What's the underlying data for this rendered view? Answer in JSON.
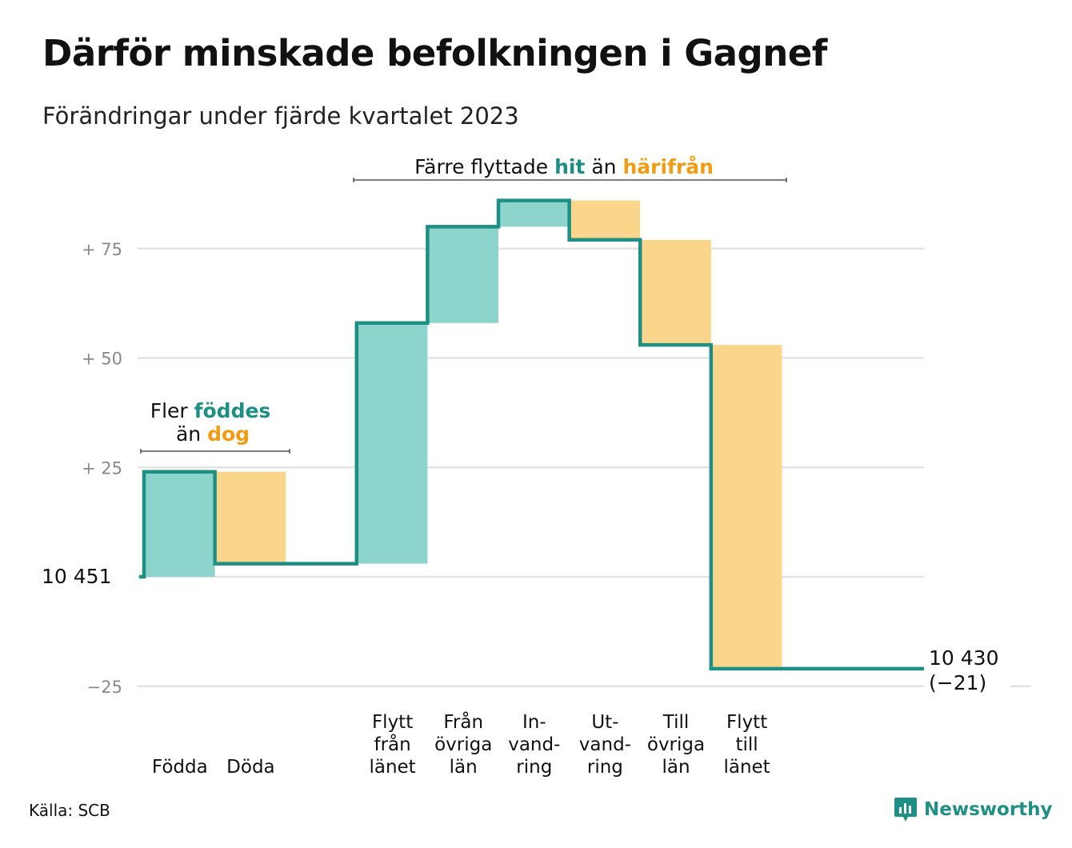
{
  "title": "Därför minskade befolkningen i Gagnef",
  "subtitle": "Förändringar under fjärde kvartalet 2023",
  "source": "Källa: SCB",
  "brand": "Newsworthy",
  "colors": {
    "inflow": "#8dd4cc",
    "outflow": "#fad68c",
    "line": "#1d8f84",
    "orange_text": "#f39c12",
    "grid": "#e3e3e3"
  },
  "chart_data": {
    "type": "waterfall",
    "start_value": 10451,
    "start_label": "10  451",
    "end_label": [
      "10 430",
      "(−21)"
    ],
    "y_ticks": [
      {
        "value": 75,
        "label": "+  75"
      },
      {
        "value": 50,
        "label": "+  50"
      },
      {
        "value": 25,
        "label": "+  25"
      },
      {
        "value": 0,
        "label": ""
      },
      {
        "value": -25,
        "label": "−25"
      }
    ],
    "ylim": [
      -25,
      90
    ],
    "steps": [
      {
        "name": "Födda",
        "label_lines": [
          "Födda"
        ],
        "value": 24,
        "kind": "in"
      },
      {
        "name": "Döda",
        "label_lines": [
          "Döda"
        ],
        "value": -21,
        "kind": "out"
      },
      {
        "name": "",
        "label_lines": [],
        "value": 0,
        "kind": "gap"
      },
      {
        "name": "Flytt från länet",
        "label_lines": [
          "Flytt",
          "från",
          "länet"
        ],
        "value": 55,
        "kind": "in"
      },
      {
        "name": "Från övriga län",
        "label_lines": [
          "Från",
          "övriga",
          "län"
        ],
        "value": 22,
        "kind": "in"
      },
      {
        "name": "Invandring",
        "label_lines": [
          "In-",
          "vand-",
          "ring"
        ],
        "value": 6,
        "kind": "in"
      },
      {
        "name": "Utvandring",
        "label_lines": [
          "Ut-",
          "vand-",
          "ring"
        ],
        "value": -9,
        "kind": "out"
      },
      {
        "name": "Till övriga län",
        "label_lines": [
          "Till",
          "övriga",
          "län"
        ],
        "value": -24,
        "kind": "out"
      },
      {
        "name": "Flytt till länet",
        "label_lines": [
          "Flytt",
          "till",
          "länet"
        ],
        "value": -74,
        "kind": "out"
      }
    ],
    "end_value": 10430,
    "annotations": [
      {
        "lines": [
          [
            "Fler ",
            "föddes"
          ],
          [
            "än ",
            "dog"
          ]
        ],
        "emph_colors": [
          "inflow_text",
          "orange_text"
        ]
      },
      {
        "lines": [
          [
            "Färre flyttade ",
            "hit",
            " än ",
            "härifrån"
          ]
        ]
      }
    ]
  }
}
